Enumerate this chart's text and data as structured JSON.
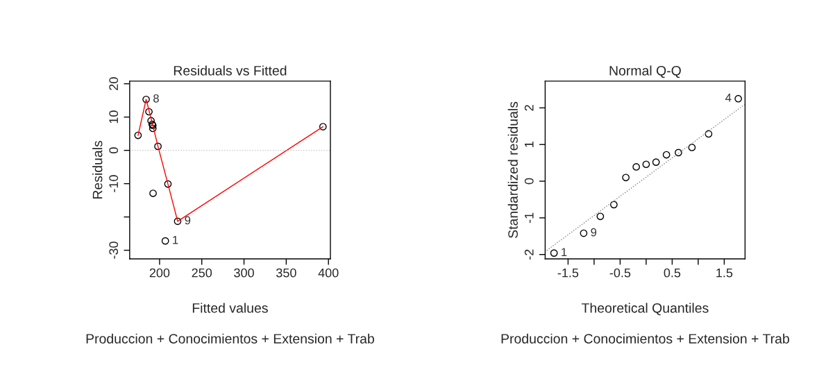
{
  "chart_data": [
    {
      "type": "scatter",
      "title": "Residuals vs Fitted",
      "xlabel": "Fitted values",
      "ylabel": "Residuals",
      "xlim": [
        164.6,
        402.3
      ],
      "ylim": [
        -32.6,
        20.8
      ],
      "xticks": [
        200,
        250,
        300,
        350,
        400
      ],
      "yticks": [
        20,
        10,
        0,
        -10,
        {
          "value": -20,
          "label": null
        },
        -30
      ],
      "legend": false,
      "grid": false,
      "series": [
        {
          "marker": "circle",
          "color": "#000000",
          "x": [
            174.5,
            184.1,
            187.4,
            189.9,
            191.2,
            192.0,
            192.0,
            198.1,
            209.9,
            192.3,
            221.4,
            206.8,
            393.5
          ],
          "values": [
            4.5,
            15.3,
            11.6,
            8.9,
            7.8,
            7.5,
            6.6,
            1.2,
            -10.1,
            -12.9,
            -21.3,
            -27.2,
            7.1
          ]
        },
        {
          "type": "line",
          "color": "#ff0000",
          "line_style": "solid",
          "x": [
            174.5,
            184.1,
            192.0,
            198.1,
            209.9,
            221.4,
            393.5
          ],
          "values": [
            4.5,
            15.3,
            7.5,
            1.2,
            -10.1,
            -21.3,
            7.1
          ]
        }
      ],
      "ref_lines": [
        {
          "axis": "y",
          "value": 0,
          "color": "#bebebe",
          "line_style": "dotted"
        }
      ],
      "annotations": [
        {
          "text": "8",
          "x": 184.1,
          "y": 15.3
        },
        {
          "text": "9",
          "x": 221.4,
          "y": -21.3
        },
        {
          "text": "1",
          "x": 206.8,
          "y": -27.2
        },
        "Produccion + Conocimientos + Extension + Trab"
      ]
    },
    {
      "type": "scatter",
      "title": "Normal Q-Q",
      "xlabel": "Theoretical Quantiles",
      "ylabel": "Standardized residuals",
      "xlim": [
        -1.94,
        1.9
      ],
      "ylim": [
        -2.12,
        2.73
      ],
      "xticks": [
        -1.5,
        {
          "value": -1,
          "label": null
        },
        -0.5,
        {
          "value": 0,
          "label": null
        },
        0.5,
        {
          "value": 1,
          "label": null
        },
        1.5
      ],
      "yticks": [
        -2,
        -1,
        0,
        1,
        2
      ],
      "legend": false,
      "grid": false,
      "series": [
        {
          "marker": "circle",
          "color": "#000000",
          "x": [
            -1.77,
            -1.2,
            -0.88,
            -0.62,
            -0.39,
            -0.19,
            0,
            0.19,
            0.39,
            0.62,
            0.88,
            1.2,
            1.77
          ],
          "values": [
            -1.96,
            -1.42,
            -0.96,
            -0.64,
            0.1,
            0.39,
            0.46,
            0.52,
            0.72,
            0.78,
            0.92,
            1.29,
            2.25
          ]
        },
        {
          "type": "line",
          "color": "#808080",
          "line_style": "dotted",
          "x": [
            -1.91,
            1.89
          ],
          "values": [
            -1.89,
            2.09
          ]
        }
      ],
      "annotations": [
        {
          "text": "4",
          "x": 1.77,
          "y": 2.25
        },
        {
          "text": "9",
          "x": -1.2,
          "y": -1.42
        },
        {
          "text": "1",
          "x": -1.77,
          "y": -1.96
        },
        "Produccion + Conocimientos + Extension + Trab"
      ]
    }
  ]
}
